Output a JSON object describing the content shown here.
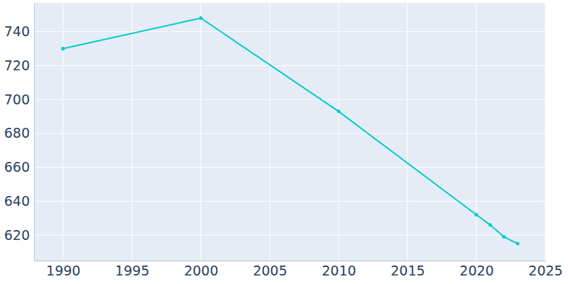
{
  "chart_data": {
    "type": "line",
    "x": [
      1990,
      2000,
      2010,
      2020,
      2021,
      2022,
      2023
    ],
    "values": [
      730,
      748,
      693,
      632,
      626,
      619,
      615
    ],
    "color": "#00cccc",
    "marker": "circle",
    "xlim": [
      1987.9,
      2025
    ],
    "xticks": [
      1990,
      1995,
      2000,
      2005,
      2010,
      2015,
      2020,
      2025
    ],
    "ylim": [
      605,
      757
    ],
    "yticks": [
      620,
      640,
      660,
      680,
      700,
      720,
      740
    ],
    "grid": true
  }
}
